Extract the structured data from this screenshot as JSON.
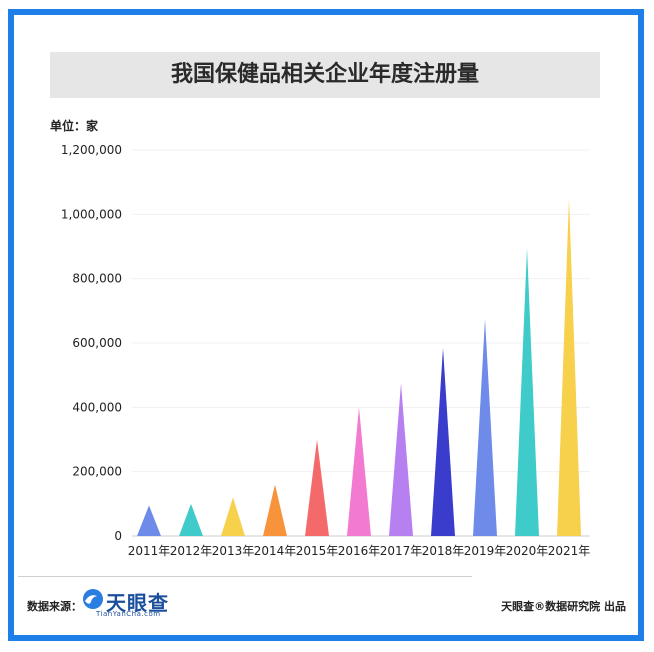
{
  "header": {
    "title": "我国保健品相关企业年度注册量"
  },
  "unit_label": "单位：家",
  "footer": {
    "source_label": "数据来源：",
    "logo_text": "天眼查",
    "logo_sub": "TianYanCha.com",
    "credit": "天眼查®数据研究院 出品"
  },
  "chart_data": {
    "type": "bar",
    "title": "我国保健品相关企业年度注册量",
    "ylabel": "单位：家",
    "xlabel": "",
    "ylim": [
      0,
      1200000
    ],
    "yticks": [
      0,
      200000,
      400000,
      600000,
      800000,
      1000000,
      1200000
    ],
    "ytick_labels": [
      "0",
      "200,000",
      "400,000",
      "600,000",
      "800,000",
      "1,000,000",
      "1,200,000"
    ],
    "grid": false,
    "categories": [
      "2011年",
      "2012年",
      "2013年",
      "2014年",
      "2015年",
      "2016年",
      "2017年",
      "2018年",
      "2019年",
      "2020年",
      "2021年"
    ],
    "values": [
      95000,
      100000,
      120000,
      160000,
      300000,
      400000,
      475000,
      585000,
      675000,
      895000,
      1050000
    ],
    "colors": [
      "#6f8bea",
      "#3fcbc9",
      "#f7d04c",
      "#f7933a",
      "#f46a6a",
      "#f27ad0",
      "#b780f0",
      "#3a3ccc",
      "#6f8bea",
      "#3fcbc9",
      "#f7d04c"
    ]
  }
}
